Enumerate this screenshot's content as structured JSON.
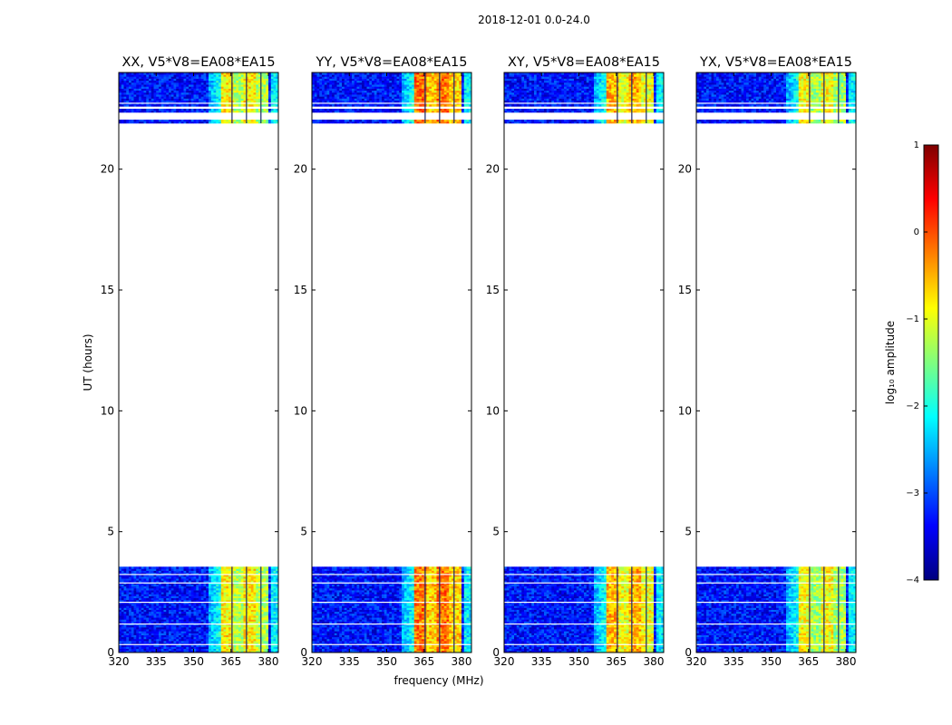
{
  "figure": {
    "suptitle": "2018-12-01 0.0-24.0"
  },
  "chart_data": {
    "type": "heatmap",
    "title": "2018-12-01 0.0-24.0",
    "xlabel": "frequency (MHz)",
    "ylabel": "UT (hours)",
    "xlim": [
      320,
      384
    ],
    "ylim": [
      0,
      24
    ],
    "xticks": [
      320,
      335,
      350,
      365,
      380
    ],
    "yticks": [
      0,
      5,
      10,
      15,
      20
    ],
    "panels": [
      {
        "title": "XX, V5*V8=EA08*EA15",
        "polarization": "XX"
      },
      {
        "title": "YY, V5*V8=EA08*EA15",
        "polarization": "YY"
      },
      {
        "title": "XY, V5*V8=EA08*EA15",
        "polarization": "XY"
      },
      {
        "title": "YX, V5*V8=EA08*EA15",
        "polarization": "YX"
      }
    ],
    "data_coverage_hours": [
      [
        0,
        3.55
      ],
      [
        21.9,
        22.05
      ],
      [
        22.35,
        22.5
      ],
      [
        22.6,
        24
      ]
    ],
    "rfi_band_mhz": [
      361,
      380
    ],
    "panel_level_log10": [
      -1.0,
      -0.4,
      -0.7,
      -1.1
    ],
    "colorbar": {
      "label": "log₁₀ amplitude",
      "range": [
        -4,
        1
      ],
      "ticks": [
        "1",
        "0",
        "−1",
        "−2",
        "−3",
        "−4"
      ],
      "colormap": "jet",
      "stops": [
        "#00007f",
        "#0000ff",
        "#007fff",
        "#00ffff",
        "#7fff7f",
        "#ffff00",
        "#ff7f00",
        "#ff0000",
        "#7f0000"
      ]
    }
  }
}
